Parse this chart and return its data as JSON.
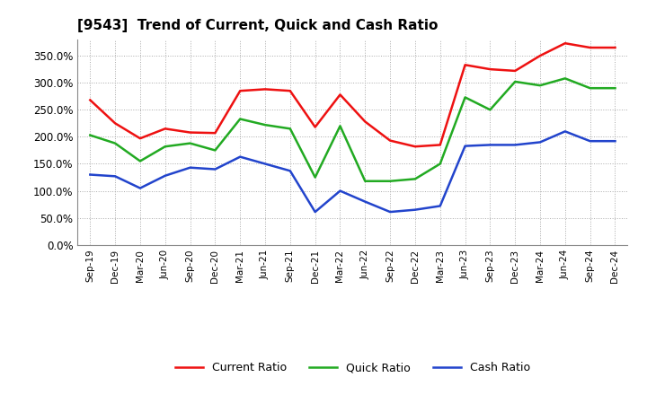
{
  "title": "[9543]  Trend of Current, Quick and Cash Ratio",
  "x_labels": [
    "Sep-19",
    "Dec-19",
    "Mar-20",
    "Jun-20",
    "Sep-20",
    "Dec-20",
    "Mar-21",
    "Jun-21",
    "Sep-21",
    "Dec-21",
    "Mar-22",
    "Jun-22",
    "Sep-22",
    "Dec-22",
    "Mar-23",
    "Jun-23",
    "Sep-23",
    "Dec-23",
    "Mar-24",
    "Jun-24",
    "Sep-24",
    "Dec-24"
  ],
  "current_ratio": [
    268,
    225,
    197,
    215,
    208,
    207,
    285,
    288,
    285,
    218,
    278,
    228,
    193,
    182,
    185,
    333,
    325,
    322,
    350,
    373,
    365,
    365
  ],
  "quick_ratio": [
    203,
    188,
    155,
    182,
    188,
    175,
    233,
    222,
    215,
    125,
    220,
    118,
    118,
    122,
    150,
    273,
    250,
    302,
    295,
    308,
    290,
    290
  ],
  "cash_ratio": [
    130,
    127,
    105,
    128,
    143,
    140,
    163,
    150,
    137,
    61,
    100,
    80,
    61,
    65,
    72,
    183,
    185,
    185,
    190,
    210,
    192,
    192
  ],
  "ylim": [
    0,
    380
  ],
  "yticks": [
    0,
    50,
    100,
    150,
    200,
    250,
    300,
    350
  ],
  "current_color": "#ee1111",
  "quick_color": "#22aa22",
  "cash_color": "#2244cc",
  "bg_color": "#ffffff",
  "grid_color": "#aaaaaa",
  "linewidth": 1.8
}
